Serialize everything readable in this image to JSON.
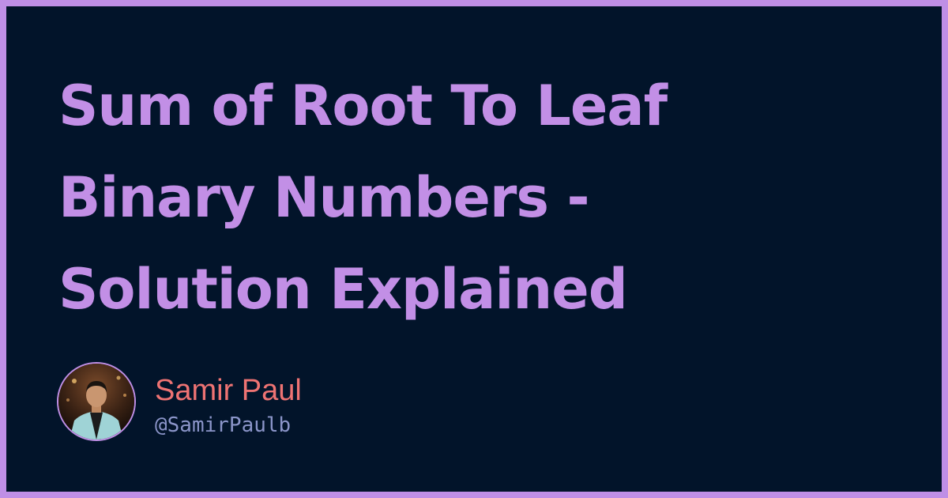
{
  "title_lines": [
    "Sum of Root To Leaf",
    "Binary Numbers -",
    "Solution Explained"
  ],
  "author": {
    "name": "Samir Paul",
    "handle": "@SamirPaulb",
    "avatar_icon": "person-photo-avatar"
  },
  "colors": {
    "frame": "#bf8fe6",
    "background": "#02142a",
    "title": "#c28fe6",
    "author_name": "#ee7373",
    "author_handle": "#8b95c9"
  }
}
